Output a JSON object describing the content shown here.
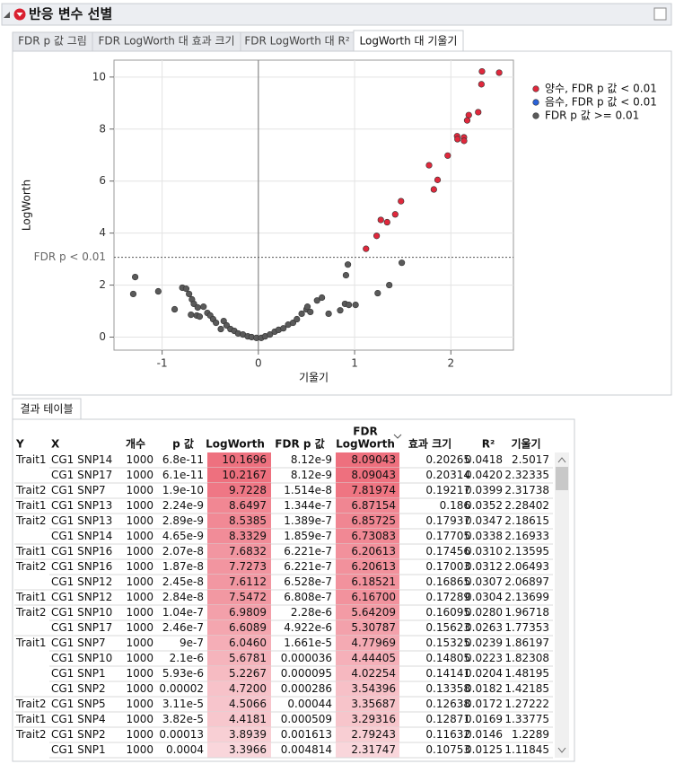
{
  "header": {
    "title": "반응 변수 선별"
  },
  "tabs": {
    "items": [
      "FDR p 값 그림",
      "FDR LogWorth 대 효과 크기",
      "FDR LogWorth 대 R²",
      "LogWorth 대 기울기"
    ],
    "active": 3
  },
  "chart_data": {
    "type": "scatter",
    "x_label": "기울기",
    "y_label": "LogWorth",
    "xlim": [
      -1.5,
      2.65
    ],
    "ylim": [
      -0.5,
      10.65
    ],
    "xticks": [
      -1,
      0,
      1,
      2
    ],
    "yticks": [
      0,
      2,
      4,
      6,
      8,
      10
    ],
    "grid": true,
    "legend": "right",
    "reference_line": {
      "value": 3.07,
      "label": "FDR p < 0.01"
    },
    "series": [
      {
        "name": "양수, FDR p 값 < 0.01",
        "color": "#e0283c",
        "x": [
          2.5017,
          2.32335,
          2.31738,
          2.28402,
          2.18615,
          2.16933,
          2.13595,
          2.06493,
          2.06897,
          2.13699,
          1.96718,
          1.77353,
          1.86197,
          1.82308,
          1.48195,
          1.42185,
          1.27222,
          1.33775,
          1.2289,
          1.11845
        ],
        "values": [
          10.1696,
          10.2167,
          9.7228,
          8.6497,
          8.5385,
          8.3329,
          7.6832,
          7.7273,
          7.6112,
          7.5472,
          6.9809,
          6.6089,
          6.046,
          5.6781,
          5.2267,
          4.72,
          4.5066,
          4.4181,
          3.8939,
          3.3966
        ]
      },
      {
        "name": "음수, FDR p 값 < 0.01",
        "color": "#2a62d8",
        "x": [],
        "values": []
      },
      {
        "name": "FDR p 값 >= 0.01",
        "color": "#5a5a5a",
        "x": [
          -1.28,
          -1.3,
          -1.04,
          -0.87,
          -0.79,
          -0.75,
          -0.72,
          -0.69,
          -0.7,
          -0.64,
          -0.61,
          -0.67,
          -0.63,
          -0.57,
          -0.53,
          -0.5,
          -0.47,
          -0.44,
          -0.39,
          -0.36,
          -0.33,
          -0.29,
          -0.25,
          -0.21,
          -0.16,
          -0.11,
          -0.07,
          -0.02,
          0.03,
          0.07,
          0.12,
          0.17,
          0.21,
          0.26,
          0.31,
          0.36,
          0.4,
          0.45,
          0.5,
          0.54,
          0.51,
          0.61,
          0.66,
          0.73,
          0.85,
          0.9,
          0.94,
          1.01,
          0.91,
          0.93,
          1.24,
          1.36,
          1.49
        ],
        "values": [
          2.31,
          1.66,
          1.76,
          1.07,
          1.9,
          1.86,
          1.66,
          1.45,
          0.86,
          0.83,
          0.79,
          1.28,
          1.14,
          1.17,
          0.93,
          0.83,
          0.69,
          0.55,
          0.31,
          0.62,
          0.45,
          0.31,
          0.24,
          0.14,
          0.1,
          0.03,
          0.0,
          -0.03,
          -0.03,
          0.03,
          0.1,
          0.21,
          0.28,
          0.34,
          0.48,
          0.55,
          0.69,
          0.9,
          1.07,
          0.97,
          1.17,
          1.41,
          1.52,
          0.9,
          1.03,
          1.28,
          1.24,
          1.24,
          2.38,
          2.79,
          1.69,
          2.0,
          2.86
        ]
      }
    ]
  },
  "result_tab": "결과 테이블",
  "table": {
    "columns": [
      "Y",
      "X",
      "개수",
      "p 값",
      "LogWorth",
      "FDR p 값",
      [
        "FDR",
        "LogWorth"
      ],
      "효과 크기",
      "R²",
      "기울기"
    ],
    "rows": [
      [
        "Trait1",
        "CG1 SNP14",
        "1000",
        "6.8e-11",
        "10.1696",
        "8.12e-9",
        "8.09043",
        "0.20265",
        "0.0418",
        "2.5017"
      ],
      [
        null,
        "CG1 SNP17",
        "1000",
        "6.1e-11",
        "10.2167",
        "8.12e-9",
        "8.09043",
        "0.20314",
        "0.0420",
        "2.32335"
      ],
      [
        "Trait2",
        "CG1 SNP7",
        "1000",
        "1.9e-10",
        "9.7228",
        "1.514e-8",
        "7.81974",
        "0.19217",
        "0.0399",
        "2.31738"
      ],
      [
        "Trait1",
        "CG1 SNP13",
        "1000",
        "2.24e-9",
        "8.6497",
        "1.344e-7",
        "6.87154",
        "0.186",
        "0.0352",
        "2.28402"
      ],
      [
        "Trait2",
        "CG1 SNP13",
        "1000",
        "2.89e-9",
        "8.5385",
        "1.389e-7",
        "6.85725",
        "0.17937",
        "0.0347",
        "2.18615"
      ],
      [
        null,
        "CG1 SNP14",
        "1000",
        "4.65e-9",
        "8.3329",
        "1.859e-7",
        "6.73083",
        "0.17705",
        "0.0338",
        "2.16933"
      ],
      [
        "Trait1",
        "CG1 SNP16",
        "1000",
        "2.07e-8",
        "7.6832",
        "6.221e-7",
        "6.20613",
        "0.17456",
        "0.0310",
        "2.13595"
      ],
      [
        "Trait2",
        "CG1 SNP16",
        "1000",
        "1.87e-8",
        "7.7273",
        "6.221e-7",
        "6.20613",
        "0.17003",
        "0.0312",
        "2.06493"
      ],
      [
        null,
        "CG1 SNP12",
        "1000",
        "2.45e-8",
        "7.6112",
        "6.528e-7",
        "6.18521",
        "0.16865",
        "0.0307",
        "2.06897"
      ],
      [
        "Trait1",
        "CG1 SNP12",
        "1000",
        "2.84e-8",
        "7.5472",
        "6.808e-7",
        "6.16700",
        "0.17289",
        "0.0304",
        "2.13699"
      ],
      [
        "Trait2",
        "CG1 SNP10",
        "1000",
        "1.04e-7",
        "6.9809",
        "2.28e-6",
        "5.64209",
        "0.16095",
        "0.0280",
        "1.96718"
      ],
      [
        null,
        "CG1 SNP17",
        "1000",
        "2.46e-7",
        "6.6089",
        "4.922e-6",
        "5.30787",
        "0.15623",
        "0.0263",
        "1.77353"
      ],
      [
        "Trait1",
        "CG1 SNP7",
        "1000",
        "9e-7",
        "6.0460",
        "1.661e-5",
        "4.77969",
        "0.15325",
        "0.0239",
        "1.86197"
      ],
      [
        null,
        "CG1 SNP10",
        "1000",
        "2.1e-6",
        "5.6781",
        "0.000036",
        "4.44405",
        "0.14805",
        "0.0223",
        "1.82308"
      ],
      [
        null,
        "CG1 SNP1",
        "1000",
        "5.93e-6",
        "5.2267",
        "0.000095",
        "4.02254",
        "0.14141",
        "0.0204",
        "1.48195"
      ],
      [
        null,
        "CG1 SNP2",
        "1000",
        "0.00002",
        "4.7200",
        "0.000286",
        "3.54396",
        "0.13358",
        "0.0182",
        "1.42185"
      ],
      [
        "Trait2",
        "CG1 SNP5",
        "1000",
        "3.11e-5",
        "4.5066",
        "0.00044",
        "3.35687",
        "0.12638",
        "0.0172",
        "1.27222"
      ],
      [
        "Trait1",
        "CG1 SNP4",
        "1000",
        "3.82e-5",
        "4.4181",
        "0.000509",
        "3.29316",
        "0.12871",
        "0.0169",
        "1.33775"
      ],
      [
        "Trait2",
        "CG1 SNP2",
        "1000",
        "0.00013",
        "3.8939",
        "0.001613",
        "2.79243",
        "0.11632",
        "0.0146",
        "1.2289"
      ],
      [
        null,
        "CG1 SNP1",
        "1000",
        "0.0004",
        "3.3966",
        "0.004814",
        "2.31747",
        "0.10753",
        "0.0125",
        "1.11845"
      ]
    ]
  }
}
